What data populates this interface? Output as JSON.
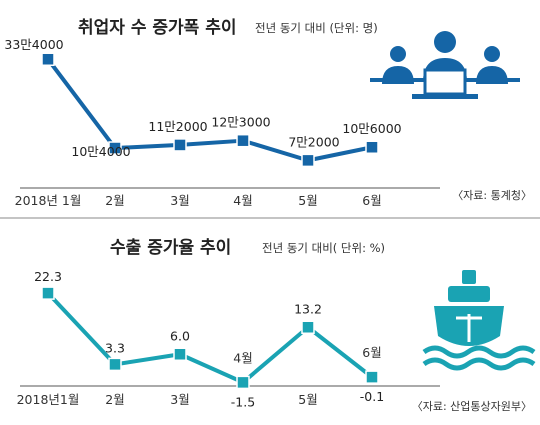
{
  "chart_data": [
    {
      "type": "line",
      "title": "취업자 수 증가폭 추이",
      "subtitle": "전년 동기 대비 (단위: 명)",
      "categories": [
        "2018년 1월",
        "2월",
        "3월",
        "4월",
        "5월",
        "6월"
      ],
      "values": [
        334000,
        104000,
        112000,
        123000,
        72000,
        106000
      ],
      "data_labels": [
        "33만4000",
        "10만4000",
        "11만2000",
        "12만3000",
        "7만2000",
        "10만6000"
      ],
      "source": "〈자료: 통계청〉",
      "color": "#1565a6",
      "ylim": [
        60000,
        345000
      ],
      "icon": "office-workers-icon"
    },
    {
      "type": "line",
      "title": "수출 증가율 추이",
      "subtitle": "전년 동기 대비( 단위: %)",
      "categories": [
        "2018년1월",
        "2월",
        "3월",
        "4월",
        "5월",
        "6월"
      ],
      "values": [
        22.3,
        3.3,
        6.0,
        -1.5,
        13.2,
        -0.1
      ],
      "data_labels": [
        "22.3",
        "3.3",
        "6.0",
        "-1.5",
        "13.2",
        "-0.1"
      ],
      "source": "〈자료: 산업통상자원부〉",
      "color": "#1aa3b3",
      "ylim": [
        -3,
        25
      ],
      "icon": "cargo-ship-icon"
    }
  ]
}
